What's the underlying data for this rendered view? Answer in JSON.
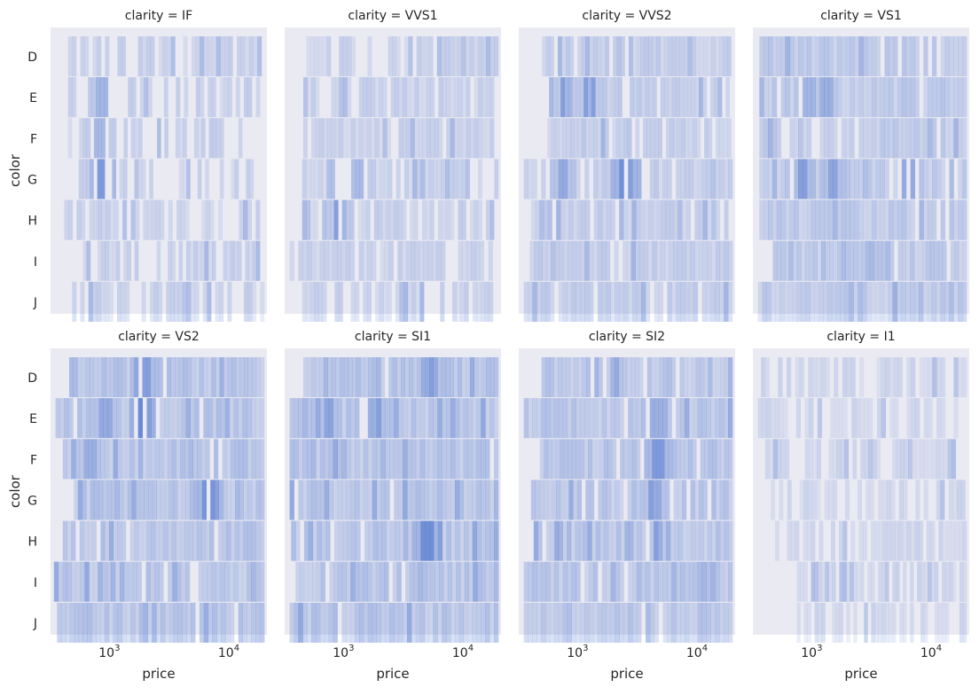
{
  "chart_data": {
    "type": "heatmap",
    "description_kind": "facet-grid-2d-histogram",
    "xlabel": "price",
    "ylabel": "color",
    "x_scale": "log",
    "xlim": [
      300,
      19500
    ],
    "x_ticks": [
      {
        "value": 1000,
        "base": "10",
        "exp": "3"
      },
      {
        "value": 10000,
        "base": "10",
        "exp": "4"
      }
    ],
    "y_categories": [
      "D",
      "E",
      "F",
      "G",
      "H",
      "I",
      "J"
    ],
    "bar_color": "#5b7fd1",
    "panel_background": "#eaeaf2",
    "facet_prefix": "clarity = ",
    "facets": [
      {
        "label": "IF",
        "xrange": [
          440,
          19000
        ],
        "density": 0.25,
        "rows": [
          [
            420,
            19000
          ],
          [
            420,
            17000
          ],
          [
            420,
            13000
          ],
          [
            480,
            15000
          ],
          [
            360,
            17000
          ],
          [
            560,
            17000
          ],
          [
            420,
            18500
          ]
        ],
        "peaks": [
          [
            800,
            2,
            0.45
          ],
          [
            850,
            3,
            0.75
          ],
          [
            780,
            1,
            0.5
          ]
        ],
        "gaps": 0.38
      },
      {
        "label": "VVS1",
        "xrange": [
          340,
          18500
        ],
        "density": 0.25,
        "rows": [
          [
            420,
            18500
          ],
          [
            430,
            17000
          ],
          [
            430,
            17000
          ],
          [
            420,
            18500
          ],
          [
            420,
            17000
          ],
          [
            330,
            18000
          ],
          [
            420,
            18000
          ]
        ],
        "peaks": [
          [
            900,
            3,
            0.65
          ],
          [
            850,
            4,
            0.5
          ],
          [
            1300,
            3,
            0.45
          ]
        ],
        "gaps": 0.18
      },
      {
        "label": "VVS2",
        "xrange": [
          330,
          18800
        ],
        "density": 0.28,
        "rows": [
          [
            470,
            18000
          ],
          [
            500,
            17500
          ],
          [
            520,
            18000
          ],
          [
            330,
            18500
          ],
          [
            380,
            18500
          ],
          [
            370,
            18500
          ],
          [
            330,
            18500
          ]
        ],
        "peaks": [
          [
            700,
            3,
            0.6
          ],
          [
            2400,
            3,
            0.85
          ],
          [
            750,
            1,
            0.5
          ],
          [
            1200,
            1,
            0.5
          ]
        ],
        "gaps": 0.1
      },
      {
        "label": "VS1",
        "xrange": [
          330,
          18800
        ],
        "density": 0.32,
        "rows": [
          [
            340,
            18500
          ],
          [
            340,
            18500
          ],
          [
            340,
            18500
          ],
          [
            340,
            18500
          ],
          [
            340,
            18500
          ],
          [
            440,
            18500
          ],
          [
            330,
            18500
          ]
        ],
        "peaks": [
          [
            780,
            3,
            0.7
          ],
          [
            1400,
            3,
            0.65
          ],
          [
            6200,
            3,
            0.6
          ],
          [
            1200,
            1,
            0.55
          ],
          [
            900,
            1,
            0.5
          ]
        ],
        "gaps": 0.08
      },
      {
        "label": "VS2",
        "xrange": [
          320,
          18800
        ],
        "density": 0.38,
        "rows": [
          [
            430,
            18500
          ],
          [
            330,
            18500
          ],
          [
            380,
            18500
          ],
          [
            400,
            18500
          ],
          [
            380,
            18500
          ],
          [
            320,
            18500
          ],
          [
            340,
            18500
          ]
        ],
        "peaks": [
          [
            1900,
            0,
            0.7
          ],
          [
            1800,
            1,
            0.9
          ],
          [
            850,
            1,
            0.6
          ],
          [
            6500,
            3,
            0.8
          ],
          [
            650,
            2,
            0.55
          ]
        ],
        "gaps": 0.05
      },
      {
        "label": "SI1",
        "xrange": [
          330,
          18800
        ],
        "density": 0.38,
        "rows": [
          [
            430,
            18500
          ],
          [
            330,
            18500
          ],
          [
            330,
            18500
          ],
          [
            330,
            18500
          ],
          [
            340,
            18500
          ],
          [
            370,
            18500
          ],
          [
            330,
            18500
          ]
        ],
        "peaks": [
          [
            4800,
            4,
            0.85
          ],
          [
            700,
            1,
            0.65
          ],
          [
            1650,
            1,
            0.55
          ],
          [
            5200,
            0,
            0.6
          ]
        ],
        "gaps": 0.04
      },
      {
        "label": "SI2",
        "xrange": [
          330,
          18800
        ],
        "density": 0.36,
        "rows": [
          [
            430,
            18500
          ],
          [
            330,
            18500
          ],
          [
            450,
            18500
          ],
          [
            380,
            18500
          ],
          [
            400,
            18500
          ],
          [
            330,
            18500
          ],
          [
            330,
            18500
          ]
        ],
        "peaks": [
          [
            4400,
            2,
            0.75
          ],
          [
            4200,
            3,
            0.6
          ],
          [
            4300,
            1,
            0.55
          ],
          [
            4400,
            4,
            0.55
          ]
        ],
        "gaps": 0.06
      },
      {
        "label": "I1",
        "xrange": [
          330,
          18800
        ],
        "density": 0.2,
        "rows": [
          [
            350,
            18500
          ],
          [
            330,
            17000
          ],
          [
            380,
            15000
          ],
          [
            390,
            18000
          ],
          [
            460,
            18500
          ],
          [
            700,
            18500
          ],
          [
            700,
            18500
          ]
        ],
        "peaks": [],
        "gaps": 0.3
      }
    ]
  }
}
